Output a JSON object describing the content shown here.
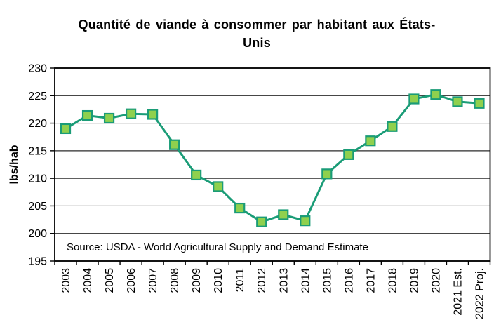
{
  "chart_data": {
    "type": "line",
    "title": "Quantité de viande à consommer par habitant aux États-Unis",
    "xlabel": "",
    "ylabel": "lbs/hab",
    "categories": [
      "2003",
      "2004",
      "2005",
      "2006",
      "2007",
      "2008",
      "2009",
      "2010",
      "2011",
      "2012",
      "2013",
      "2014",
      "2015",
      "2016",
      "2017",
      "2018",
      "2019",
      "2020",
      "2021 Est.",
      "2022 Proj."
    ],
    "values": [
      219.0,
      221.4,
      220.9,
      221.7,
      221.6,
      216.1,
      210.6,
      208.5,
      204.6,
      202.1,
      203.4,
      202.3,
      210.8,
      214.3,
      216.8,
      219.4,
      224.4,
      225.2,
      223.9,
      223.6
    ],
    "ylim": [
      195,
      230
    ],
    "ytick_step": 5,
    "yticks": [
      195,
      200,
      205,
      210,
      215,
      220,
      225,
      230
    ],
    "grid": "horizontal",
    "legend_position": "none",
    "source_note": "Source: USDA - World Agricultural Supply and Demand Estimate",
    "line_color": "#1a9c77",
    "marker_fill": "#8fd04e",
    "marker_shape": "square"
  }
}
